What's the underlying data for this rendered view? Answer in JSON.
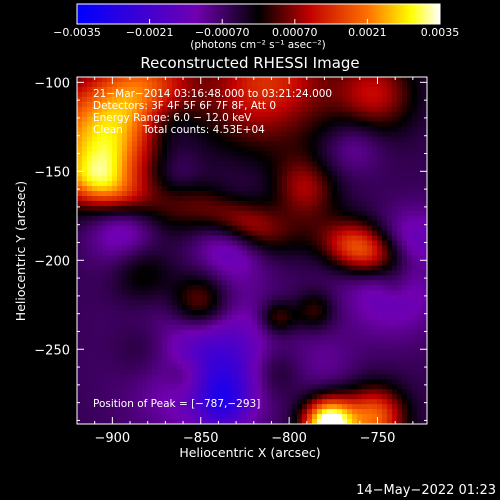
{
  "chart_data": {
    "type": "heatmap",
    "title": "Reconstructed RHESSI Image",
    "xlabel": "Heliocentric X (arcsec)",
    "ylabel": "Heliocentric Y (arcsec)",
    "xlim": [
      -920,
      -722
    ],
    "ylim": [
      -292,
      -97
    ],
    "xticks": [
      -900,
      -850,
      -800,
      -750
    ],
    "yticks": [
      -100,
      -150,
      -200,
      -250
    ],
    "xtick_labels": [
      "−900",
      "−850",
      "−800",
      "−750"
    ],
    "ytick_labels": [
      "−100",
      "−150",
      "−200",
      "−250"
    ],
    "colorbar": {
      "min": -0.0035,
      "max": 0.0035,
      "ticks": [
        -0.0035,
        -0.0021,
        -0.0007,
        0.0007,
        0.0021,
        0.0035
      ],
      "tick_labels": [
        "−0.0035",
        "−0.0021",
        "−0.00070",
        "0.00070",
        "0.0021",
        "0.0035"
      ],
      "unit_label": "(photons cm⁻² s⁻¹ asec⁻²)",
      "placement": "top"
    },
    "annotations": [
      "21−Mar−2014 03:16:48.000 to 03:21:24.000",
      "Detectors: 3F 4F 5F 6F 7F 8F, Att 0",
      "Energy Range: 6.0 − 12.0 keV",
      "Clean      Total counts: 4.53E+04"
    ],
    "peak_text": "Position of Peak = [−787,−293]",
    "peak": [
      -787,
      -293
    ],
    "timestamp": "14−May−2022 01:23",
    "colors": {
      "colormap": [
        "#0000ff",
        "#7000b0",
        "#000000",
        "#c00000",
        "#ff7000",
        "#ffff00",
        "#ffffff"
      ],
      "background": "#000000",
      "text": "#ffffff"
    }
  }
}
